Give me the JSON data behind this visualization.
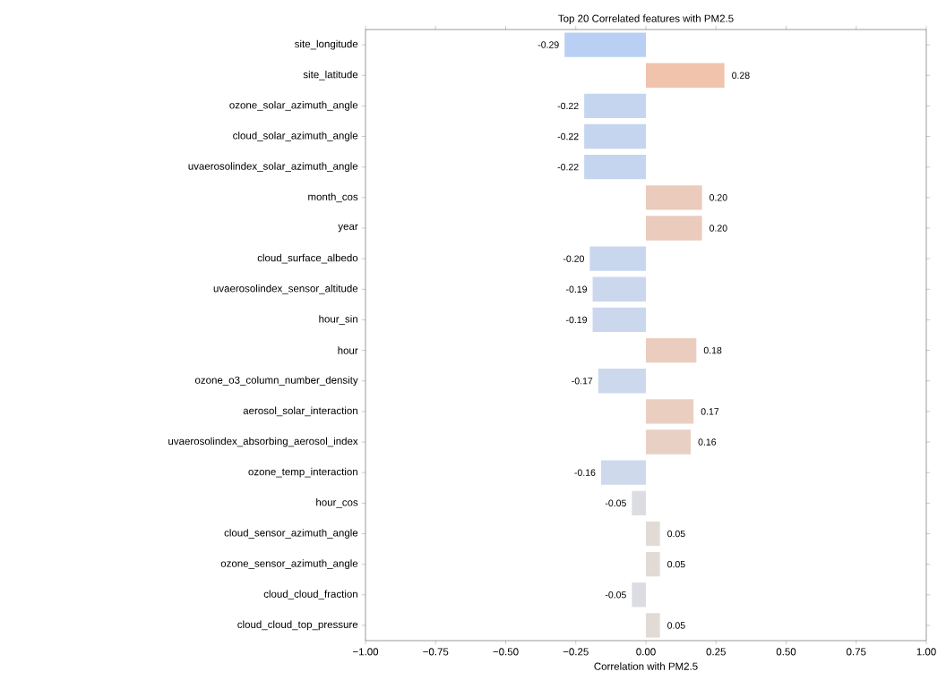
{
  "chart_data": {
    "type": "bar",
    "orientation": "horizontal",
    "title": "Top 20 Correlated features with PM2.5",
    "xlabel": "Correlation with PM2.5",
    "categories": [
      "site_longitude",
      "site_latitude",
      "ozone_solar_azimuth_angle",
      "cloud_solar_azimuth_angle",
      "uvaerosolindex_solar_azimuth_angle",
      "month_cos",
      "year",
      "cloud_surface_albedo",
      "uvaerosolindex_sensor_altitude",
      "hour_sin",
      "hour",
      "ozone_o3_column_number_density",
      "aerosol_solar_interaction",
      "uvaerosolindex_absorbing_aerosol_index",
      "ozone_temp_interaction",
      "hour_cos",
      "cloud_sensor_azimuth_angle",
      "ozone_sensor_azimuth_angle",
      "cloud_cloud_fraction",
      "cloud_cloud_top_pressure"
    ],
    "values": [
      -0.29,
      0.28,
      -0.22,
      -0.22,
      -0.22,
      0.2,
      0.2,
      -0.2,
      -0.19,
      -0.19,
      0.18,
      -0.17,
      0.17,
      0.16,
      -0.16,
      -0.05,
      0.05,
      0.05,
      -0.05,
      0.05
    ],
    "value_labels": [
      "-0.29",
      "0.28",
      "-0.22",
      "-0.22",
      "-0.22",
      "0.20",
      "0.20",
      "-0.20",
      "-0.19",
      "-0.19",
      "0.18",
      "-0.17",
      "0.17",
      "0.16",
      "-0.16",
      "-0.05",
      "0.05",
      "0.05",
      "-0.05",
      "0.05"
    ],
    "colors": [
      "#b9cff3",
      "#f0c3ac",
      "#c5d5ef",
      "#c5d5ef",
      "#c5d5ef",
      "#ebcbbb",
      "#ebcbbb",
      "#c8d6ee",
      "#cad7ed",
      "#cad7ed",
      "#ebcdbf",
      "#ccd9ed",
      "#eacfc1",
      "#e9d0c4",
      "#ced9ec",
      "#dcdde2",
      "#e2dad5",
      "#e2dad5",
      "#dcdde2",
      "#e2dad5"
    ],
    "xlim": [
      -1,
      1
    ],
    "xticks": [
      {
        "value": -1,
        "label": "−1.00"
      },
      {
        "value": -0.75,
        "label": "−0.75"
      },
      {
        "value": -0.5,
        "label": "−0.50"
      },
      {
        "value": -0.25,
        "label": "−0.25"
      },
      {
        "value": 0,
        "label": "0.00"
      },
      {
        "value": 0.25,
        "label": "0.25"
      },
      {
        "value": 0.5,
        "label": "0.50"
      },
      {
        "value": 0.75,
        "label": "0.75"
      },
      {
        "value": 1,
        "label": "1.00"
      }
    ]
  }
}
